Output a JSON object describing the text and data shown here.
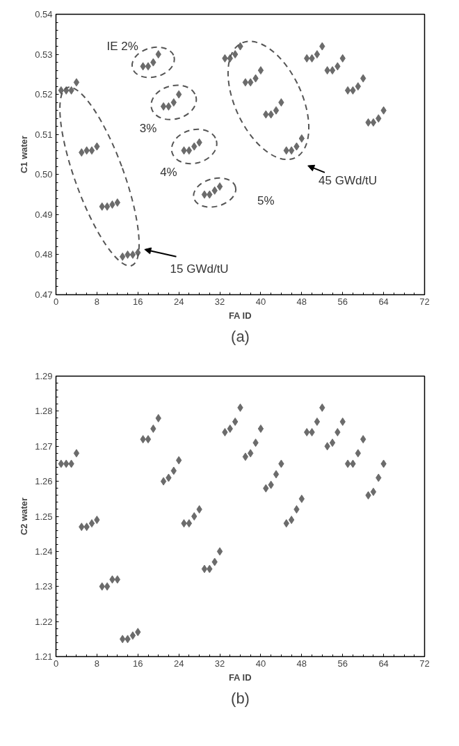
{
  "chart_data": [
    {
      "type": "scatter",
      "xlabel": "FA ID",
      "ylabel": "C1 water",
      "marker": "diamond",
      "grid": false,
      "xlim": [
        0,
        72
      ],
      "xticks": [
        0,
        8,
        16,
        24,
        32,
        40,
        48,
        56,
        64,
        72
      ],
      "ylim": [
        0.47,
        0.54
      ],
      "yticks": [
        {
          "value": 0.47,
          "label": "0.47"
        },
        {
          "value": 0.48,
          "label": "0.48"
        },
        {
          "value": 0.49,
          "label": "0.49"
        },
        {
          "value": 0.5,
          "label": "0.50"
        },
        {
          "value": 0.51,
          "label": "0.51"
        },
        {
          "value": 0.52,
          "label": "0.52"
        },
        {
          "value": 0.53,
          "label": "0.53"
        },
        {
          "value": 0.54,
          "label": "0.54"
        }
      ],
      "x": [
        1,
        2,
        3,
        4,
        5,
        6,
        7,
        8,
        9,
        10,
        11,
        12,
        13,
        14,
        15,
        16,
        17,
        18,
        19,
        20,
        21,
        22,
        23,
        24,
        25,
        26,
        27,
        28,
        29,
        30,
        31,
        32,
        33,
        34,
        35,
        36,
        37,
        38,
        39,
        40,
        41,
        42,
        43,
        44,
        45,
        46,
        47,
        48,
        49,
        50,
        51,
        52,
        53,
        54,
        55,
        56,
        57,
        58,
        59,
        60,
        61,
        62,
        63,
        64
      ],
      "series": [
        {
          "color": "#6b6b6b",
          "values": [
            0.521,
            0.521,
            0.521,
            0.523,
            0.5055,
            0.506,
            0.506,
            0.507,
            0.492,
            0.492,
            0.4925,
            0.493,
            0.4795,
            0.48,
            0.48,
            0.4805,
            0.527,
            0.527,
            0.528,
            0.53,
            0.517,
            0.517,
            0.518,
            0.52,
            0.506,
            0.506,
            0.507,
            0.508,
            0.495,
            0.495,
            0.496,
            0.497,
            0.529,
            0.529,
            0.53,
            0.532,
            0.523,
            0.523,
            0.524,
            0.526,
            0.515,
            0.515,
            0.516,
            0.518,
            0.506,
            0.506,
            0.507,
            0.509,
            0.529,
            0.529,
            0.53,
            0.532,
            0.526,
            0.526,
            0.527,
            0.529,
            0.521,
            0.521,
            0.522,
            0.524,
            0.513,
            0.513,
            0.514,
            0.516
          ]
        }
      ],
      "annotations": [
        "IE 2%",
        "3%",
        "4%",
        "5%",
        "45 GWd/tU",
        "15 GWd/tU",
        "(a)"
      ]
    },
    {
      "type": "scatter",
      "xlabel": "FA ID",
      "ylabel": "C2 water",
      "marker": "diamond",
      "grid": false,
      "xlim": [
        0,
        72
      ],
      "xticks": [
        0,
        8,
        16,
        24,
        32,
        40,
        48,
        56,
        64,
        72
      ],
      "ylim": [
        1.21,
        1.29
      ],
      "yticks": [
        1.21,
        1.22,
        1.23,
        1.24,
        1.25,
        1.26,
        1.27,
        1.28,
        1.29
      ],
      "x": [
        1,
        2,
        3,
        4,
        5,
        6,
        7,
        8,
        9,
        10,
        11,
        12,
        13,
        14,
        15,
        16,
        17,
        18,
        19,
        20,
        21,
        22,
        23,
        24,
        25,
        26,
        27,
        28,
        29,
        30,
        31,
        32,
        33,
        34,
        35,
        36,
        37,
        38,
        39,
        40,
        41,
        42,
        43,
        44,
        45,
        46,
        47,
        48,
        49,
        50,
        51,
        52,
        53,
        54,
        55,
        56,
        57,
        58,
        59,
        60,
        61,
        62,
        63,
        64
      ],
      "series": [
        {
          "color": "#6b6b6b",
          "values": [
            1.265,
            1.265,
            1.265,
            1.268,
            1.247,
            1.247,
            1.248,
            1.249,
            1.23,
            1.23,
            1.232,
            1.232,
            1.215,
            1.215,
            1.216,
            1.217,
            1.272,
            1.272,
            1.275,
            1.278,
            1.26,
            1.261,
            1.263,
            1.266,
            1.248,
            1.248,
            1.25,
            1.252,
            1.235,
            1.235,
            1.237,
            1.24,
            1.274,
            1.275,
            1.277,
            1.281,
            1.267,
            1.268,
            1.271,
            1.275,
            1.258,
            1.259,
            1.262,
            1.265,
            1.248,
            1.249,
            1.252,
            1.255,
            1.274,
            1.274,
            1.277,
            1.281,
            1.27,
            1.271,
            1.274,
            1.277,
            1.265,
            1.265,
            1.268,
            1.272,
            1.256,
            1.257,
            1.261,
            1.265
          ]
        }
      ],
      "annotations": [
        "(b)"
      ]
    }
  ]
}
